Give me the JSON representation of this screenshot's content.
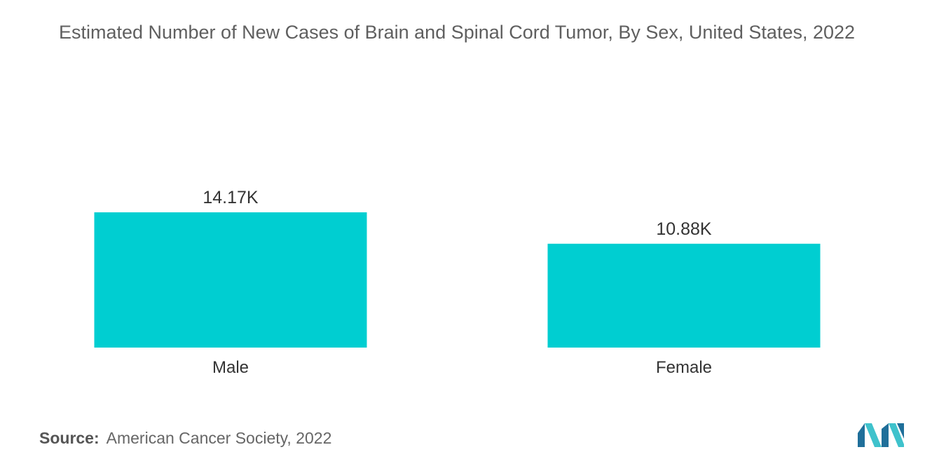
{
  "title": "Estimated Number of New Cases of Brain and Spinal Cord Tumor, By Sex, United States, 2022",
  "source": {
    "label": "Source:",
    "text": "American Cancer Society, 2022"
  },
  "colors": {
    "bar": "#00ced1",
    "text": "#333333",
    "title": "#5f5f5f",
    "logo_dark": "#1f6f9a",
    "logo_light": "#3fc2cc"
  },
  "logo_icon": "mordor-intelligence-logo",
  "chart_data": {
    "type": "bar",
    "categories": [
      "Male",
      "Female"
    ],
    "values": [
      14.17,
      10.88
    ],
    "value_labels": [
      "14.17K",
      "10.88K"
    ],
    "unit": "K",
    "title": "Estimated Number of New Cases of Brain and Spinal Cord Tumor, By Sex, United States, 2022",
    "xlabel": "",
    "ylabel": "",
    "ylim": [
      0,
      14.17
    ],
    "grid": false,
    "legend": "none"
  }
}
